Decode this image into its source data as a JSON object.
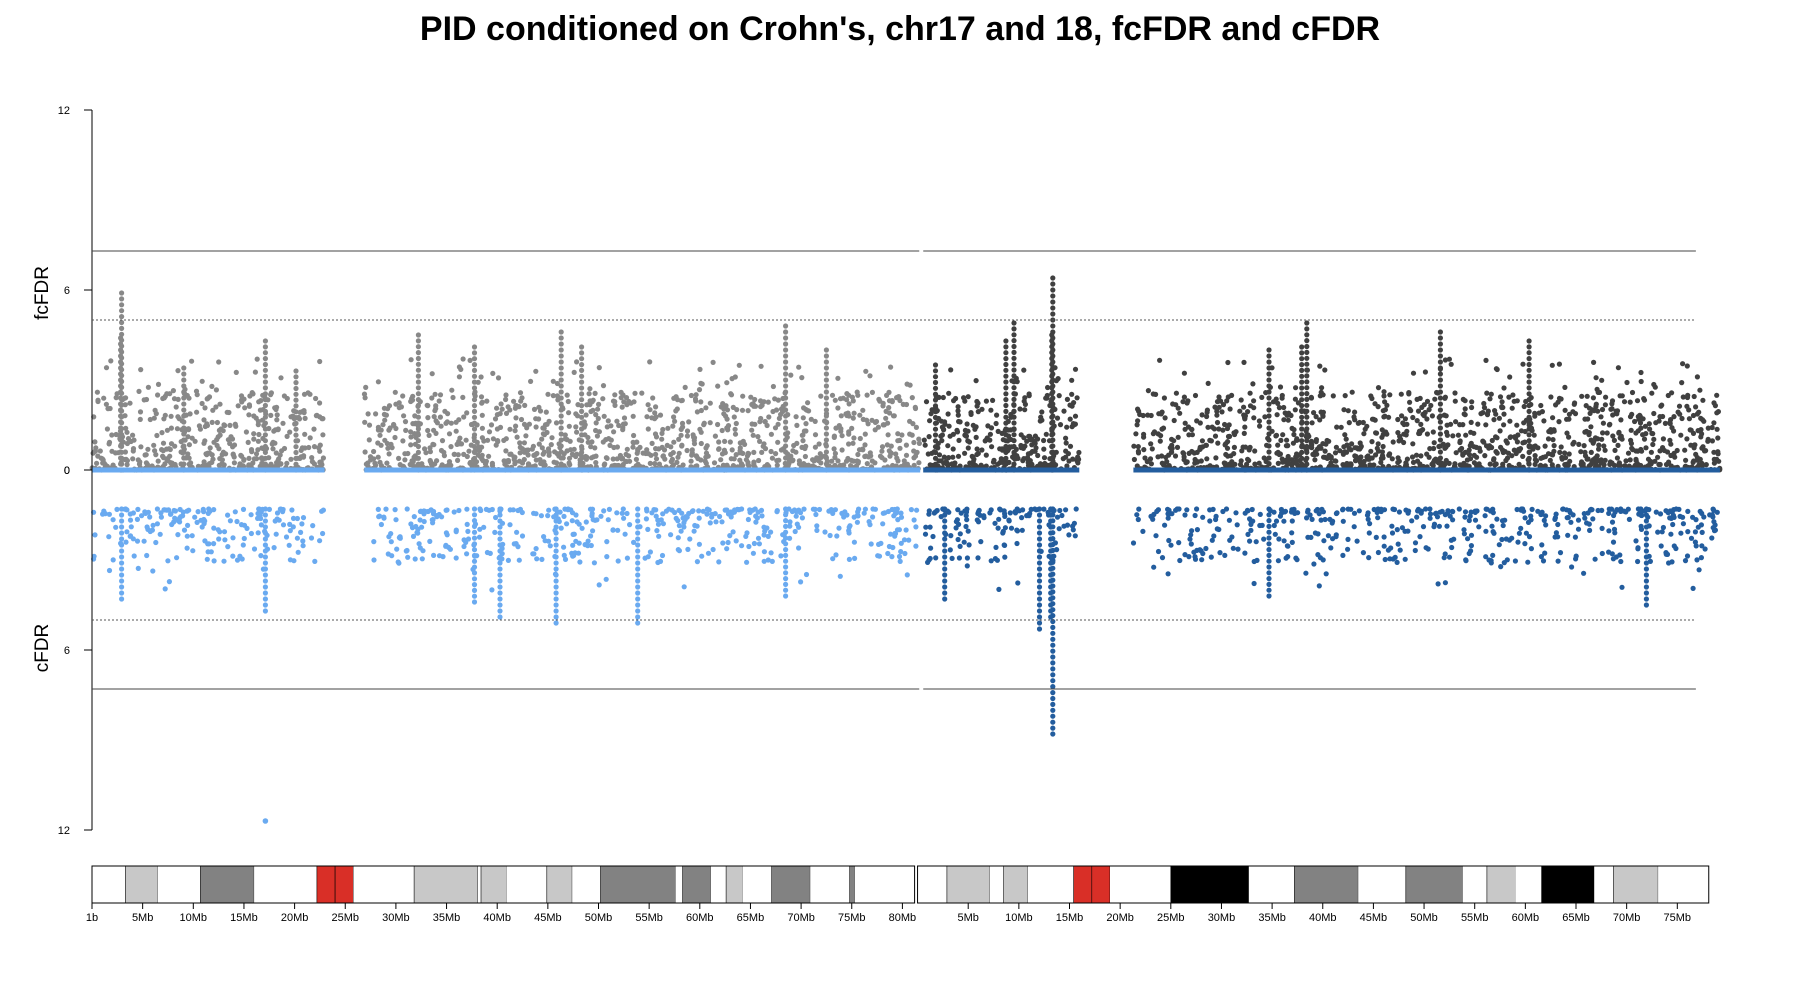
{
  "chart_data": {
    "type": "scatter",
    "title": "PID conditioned on Crohn's, chr17 and 18, fcFDR and cFDR",
    "upper_panel": {
      "ylabel": "fcFDR",
      "yticks": [
        "0",
        "6",
        "12"
      ],
      "ylim": [
        0,
        12
      ],
      "solid_threshold": 7.3,
      "dotted_threshold": 5.0
    },
    "lower_panel": {
      "ylabel": "cFDR",
      "yticks": [
        "0",
        "6",
        "12"
      ],
      "ylim": [
        0,
        12
      ],
      "solid_threshold": 7.3,
      "dotted_threshold": 5.0
    },
    "series": [
      {
        "name": "chr17",
        "length_mb": 81.2,
        "fcfdr_color": "#888888",
        "cfdr_color": "#6aaaf0",
        "gaps_mb": [
          [
            22.8,
            26.7
          ]
        ],
        "fcfdr_peaks": [
          {
            "pos": 2.9,
            "val": 5.9
          },
          {
            "pos": 2.8,
            "val": 4.4
          },
          {
            "pos": 17,
            "val": 4.3
          },
          {
            "pos": 32,
            "val": 4.5
          },
          {
            "pos": 37.5,
            "val": 4.1
          },
          {
            "pos": 46,
            "val": 4.6
          },
          {
            "pos": 68,
            "val": 4.8
          },
          {
            "pos": 72,
            "val": 4.0
          },
          {
            "pos": 48,
            "val": 4.1
          },
          {
            "pos": 20,
            "val": 3.3
          },
          {
            "pos": 9,
            "val": 3.4
          }
        ],
        "cfdr_peaks": [
          {
            "pos": 2.9,
            "val": 4.3
          },
          {
            "pos": 17,
            "val": 4.7
          },
          {
            "pos": 17,
            "val": 11.7
          },
          {
            "pos": 40,
            "val": 4.9
          },
          {
            "pos": 45.5,
            "val": 5.1
          },
          {
            "pos": 53.5,
            "val": 5.1
          },
          {
            "pos": 37.5,
            "val": 4.4
          },
          {
            "pos": 68,
            "val": 4.2
          }
        ]
      },
      {
        "name": "chr18",
        "length_mb": 78.1,
        "fcfdr_color": "#404040",
        "cfdr_color": "#235d9e",
        "gaps_mb": [
          [
            15.3,
            20.6
          ]
        ],
        "fcfdr_peaks": [
          {
            "pos": 12.7,
            "val": 6.4
          },
          {
            "pos": 12.6,
            "val": 4.5
          },
          {
            "pos": 8.9,
            "val": 4.9
          },
          {
            "pos": 37.6,
            "val": 4.9
          },
          {
            "pos": 50.7,
            "val": 4.6
          },
          {
            "pos": 59.4,
            "val": 4.3
          },
          {
            "pos": 33.9,
            "val": 4.0
          },
          {
            "pos": 37.1,
            "val": 4.1
          },
          {
            "pos": 8.1,
            "val": 4.3
          },
          {
            "pos": 1.2,
            "val": 3.5
          }
        ],
        "cfdr_peaks": [
          {
            "pos": 12.7,
            "val": 8.8
          },
          {
            "pos": 11.4,
            "val": 5.3
          },
          {
            "pos": 2.1,
            "val": 4.3
          },
          {
            "pos": 33.9,
            "val": 4.2
          },
          {
            "pos": 70.9,
            "val": 4.5
          },
          {
            "pos": 12.5,
            "val": 4.9
          }
        ]
      }
    ],
    "ideograms": [
      {
        "name": "chr17",
        "length_mb": 81.2,
        "bands": [
          [
            0,
            3.3,
            "w"
          ],
          [
            3.3,
            6.5,
            "g25"
          ],
          [
            6.5,
            10.7,
            "w"
          ],
          [
            10.7,
            16,
            "g50"
          ],
          [
            16,
            22.2,
            "w"
          ],
          [
            22.2,
            24,
            "cen"
          ],
          [
            24,
            25.8,
            "cen"
          ],
          [
            25.8,
            31.8,
            "w"
          ],
          [
            31.8,
            38.1,
            "g25"
          ],
          [
            38.1,
            38.4,
            "w"
          ],
          [
            38.4,
            40.9,
            "g25"
          ],
          [
            40.9,
            44.9,
            "w"
          ],
          [
            44.9,
            47.4,
            "g25"
          ],
          [
            47.4,
            50.2,
            "w"
          ],
          [
            50.2,
            57.6,
            "g50"
          ],
          [
            57.6,
            58.3,
            "w"
          ],
          [
            58.3,
            61.1,
            "g50"
          ],
          [
            61.1,
            62.6,
            "w"
          ],
          [
            62.6,
            64.2,
            "g25"
          ],
          [
            64.2,
            67.1,
            "w"
          ],
          [
            67.1,
            70.9,
            "g50"
          ],
          [
            70.9,
            74.8,
            "w"
          ],
          [
            74.8,
            75.3,
            "g50"
          ],
          [
            75.3,
            81.2,
            "w"
          ]
        ],
        "ticks": [
          "1b",
          "5Mb",
          "10Mb",
          "15Mb",
          "20Mb",
          "25Mb",
          "30Mb",
          "35Mb",
          "40Mb",
          "45Mb",
          "50Mb",
          "55Mb",
          "60Mb",
          "65Mb",
          "70Mb",
          "75Mb",
          "80Mb"
        ]
      },
      {
        "name": "chr18",
        "length_mb": 78.1,
        "bands": [
          [
            0,
            2.9,
            "w"
          ],
          [
            2.9,
            7.1,
            "g25"
          ],
          [
            7.1,
            8.5,
            "w"
          ],
          [
            8.5,
            10.9,
            "g25"
          ],
          [
            10.9,
            15.4,
            "w"
          ],
          [
            15.4,
            17.2,
            "cen"
          ],
          [
            17.2,
            19.0,
            "cen"
          ],
          [
            19.0,
            25.0,
            "w"
          ],
          [
            25.0,
            32.7,
            "g100"
          ],
          [
            32.7,
            37.2,
            "w"
          ],
          [
            37.2,
            43.5,
            "g50"
          ],
          [
            43.5,
            48.2,
            "w"
          ],
          [
            48.2,
            53.8,
            "g50"
          ],
          [
            53.8,
            56.2,
            "w"
          ],
          [
            56.2,
            59.0,
            "g25"
          ],
          [
            59.0,
            61.6,
            "w"
          ],
          [
            61.6,
            66.8,
            "g100"
          ],
          [
            66.8,
            68.7,
            "w"
          ],
          [
            68.7,
            73.1,
            "g25"
          ],
          [
            73.1,
            78.1,
            "w"
          ]
        ],
        "ticks": [
          "5Mb",
          "10Mb",
          "15Mb",
          "20Mb",
          "25Mb",
          "30Mb",
          "35Mb",
          "40Mb",
          "45Mb",
          "50Mb",
          "55Mb",
          "60Mb",
          "65Mb",
          "70Mb",
          "75Mb"
        ]
      }
    ],
    "band_colors": {
      "w": "#ffffff",
      "g25": "#c8c8c8",
      "g50": "#828282",
      "g100": "#000000",
      "cen": "#d92f27"
    }
  }
}
